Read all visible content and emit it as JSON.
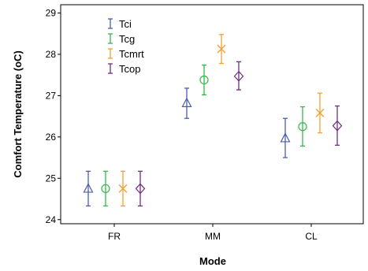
{
  "chart_data": {
    "type": "scatter",
    "subtype": "error-bar",
    "xlabel": "Mode",
    "ylabel": "Comfort Temperature (oC)",
    "categories": [
      "FR",
      "MM",
      "CL"
    ],
    "ylim": [
      23.9,
      29.2
    ],
    "yticks": [
      24,
      25,
      26,
      27,
      28,
      29
    ],
    "grid": false,
    "legend_position": "top-left",
    "series": [
      {
        "name": "Tci",
        "color": "#4a5eb0",
        "marker": "triangle",
        "means": [
          24.75,
          26.82,
          25.97
        ],
        "lower": [
          24.33,
          26.45,
          25.5
        ],
        "upper": [
          25.17,
          27.18,
          26.45
        ]
      },
      {
        "name": "Tcg",
        "color": "#33b84a",
        "marker": "circle",
        "means": [
          24.75,
          27.38,
          26.25
        ],
        "lower": [
          24.33,
          27.02,
          25.78
        ],
        "upper": [
          25.17,
          27.74,
          26.73
        ]
      },
      {
        "name": "Tcmrt",
        "color": "#f5a034",
        "marker": "x",
        "means": [
          24.75,
          28.13,
          26.58
        ],
        "lower": [
          24.33,
          27.78,
          26.1
        ],
        "upper": [
          25.17,
          28.48,
          27.06
        ]
      },
      {
        "name": "Tcop",
        "color": "#6e2f7e",
        "marker": "diamond",
        "means": [
          24.75,
          27.47,
          26.27
        ],
        "lower": [
          24.33,
          27.14,
          25.8
        ],
        "upper": [
          25.17,
          27.82,
          26.75
        ]
      }
    ]
  }
}
